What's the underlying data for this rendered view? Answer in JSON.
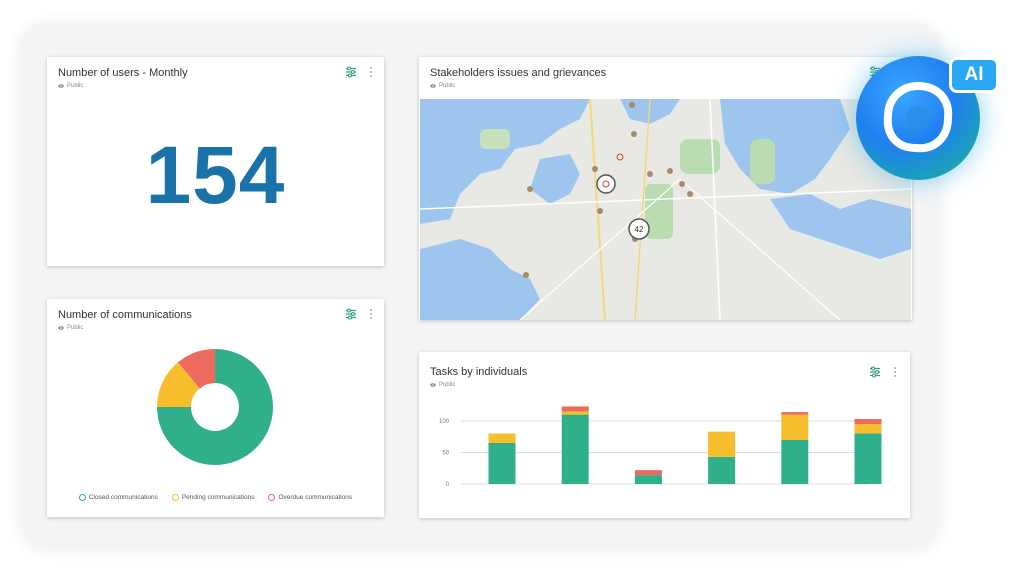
{
  "users_card": {
    "title": "Number of users - Monthly",
    "visibility": "Public",
    "value": "154"
  },
  "communications_card": {
    "title": "Number of communications",
    "visibility": "Public",
    "legend": [
      {
        "label": "Closed communications",
        "color": "#2fb08a"
      },
      {
        "label": "Pending communications",
        "color": "#f6bd2c"
      },
      {
        "label": "Overdue communications",
        "color": "#ec6a5e"
      }
    ]
  },
  "stakeholders_card": {
    "title": "Stakeholders issues and grievances",
    "visibility": "Public",
    "cluster_counts": [
      "42"
    ]
  },
  "tasks_card": {
    "title": "Tasks by individuals",
    "visibility": "Public"
  },
  "ai_badge": {
    "label": "AI"
  },
  "colors": {
    "accent_blue": "#1a73a8",
    "closed": "#2fb08a",
    "pending": "#f6bd2c",
    "overdue": "#ec6a5e",
    "settings_icon": "#2e9e7a"
  },
  "chart_data": [
    {
      "type": "pie",
      "donut": true,
      "slices": [
        {
          "label": "Closed communications",
          "value": 75,
          "color": "#2fb08a"
        },
        {
          "label": "Pending communications",
          "value": 14,
          "color": "#f6bd2c"
        },
        {
          "label": "Overdue communications",
          "value": 11,
          "color": "#ec6a5e"
        }
      ],
      "legend_position": "bottom"
    },
    {
      "type": "bar",
      "stacked": true,
      "categories": [
        "",
        "",
        "",
        "",
        "",
        ""
      ],
      "ylim": [
        0,
        130
      ],
      "yticks": [
        "0",
        "50",
        "100"
      ],
      "grid": true,
      "series": [
        {
          "color": "#2fb08a",
          "values": [
            65,
            110,
            14,
            43,
            70,
            80
          ]
        },
        {
          "color": "#f6bd2c",
          "values": [
            15,
            5,
            0,
            40,
            40,
            15
          ]
        },
        {
          "color": "#ec6a5e",
          "values": [
            0,
            8,
            8,
            0,
            4,
            8
          ]
        }
      ]
    }
  ]
}
